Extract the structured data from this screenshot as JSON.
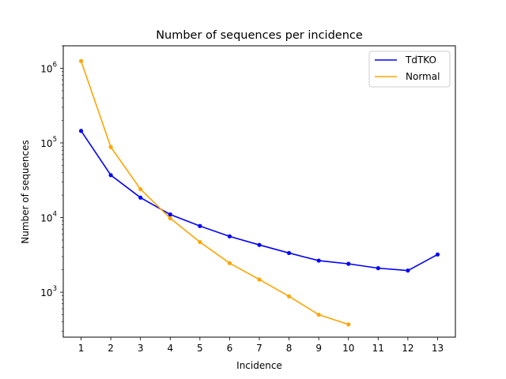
{
  "chart_data": {
    "type": "line",
    "title": "Number of sequences per incidence",
    "xlabel": "Incidence",
    "ylabel": "Number of sequences",
    "yscale": "log",
    "xlim": [
      0.4,
      13.6
    ],
    "ylim": [
      250,
      2000000
    ],
    "x_ticks": [
      "1",
      "2",
      "3",
      "4",
      "5",
      "6",
      "7",
      "8",
      "9",
      "10",
      "11",
      "12",
      "13"
    ],
    "y_ticks": [
      {
        "value": 1000,
        "base": "10",
        "exp": "3"
      },
      {
        "value": 10000,
        "base": "10",
        "exp": "4"
      },
      {
        "value": 100000,
        "base": "10",
        "exp": "5"
      },
      {
        "value": 1000000,
        "base": "10",
        "exp": "6"
      }
    ],
    "legend_position": "top-right",
    "series": [
      {
        "name": "TdTKO",
        "color": "#0000ff",
        "x": [
          1,
          2,
          3,
          4,
          5,
          6,
          7,
          8,
          9,
          10,
          11,
          12,
          13
        ],
        "values": [
          145000,
          37000,
          18500,
          11000,
          7700,
          5600,
          4300,
          3350,
          2650,
          2400,
          2100,
          1950,
          3200
        ]
      },
      {
        "name": "Normal",
        "color": "#ffa500",
        "x": [
          1,
          2,
          3,
          4,
          5,
          6,
          7,
          8,
          9,
          10
        ],
        "values": [
          1250000,
          88000,
          24000,
          9800,
          4700,
          2450,
          1480,
          880,
          500,
          370
        ]
      }
    ]
  }
}
